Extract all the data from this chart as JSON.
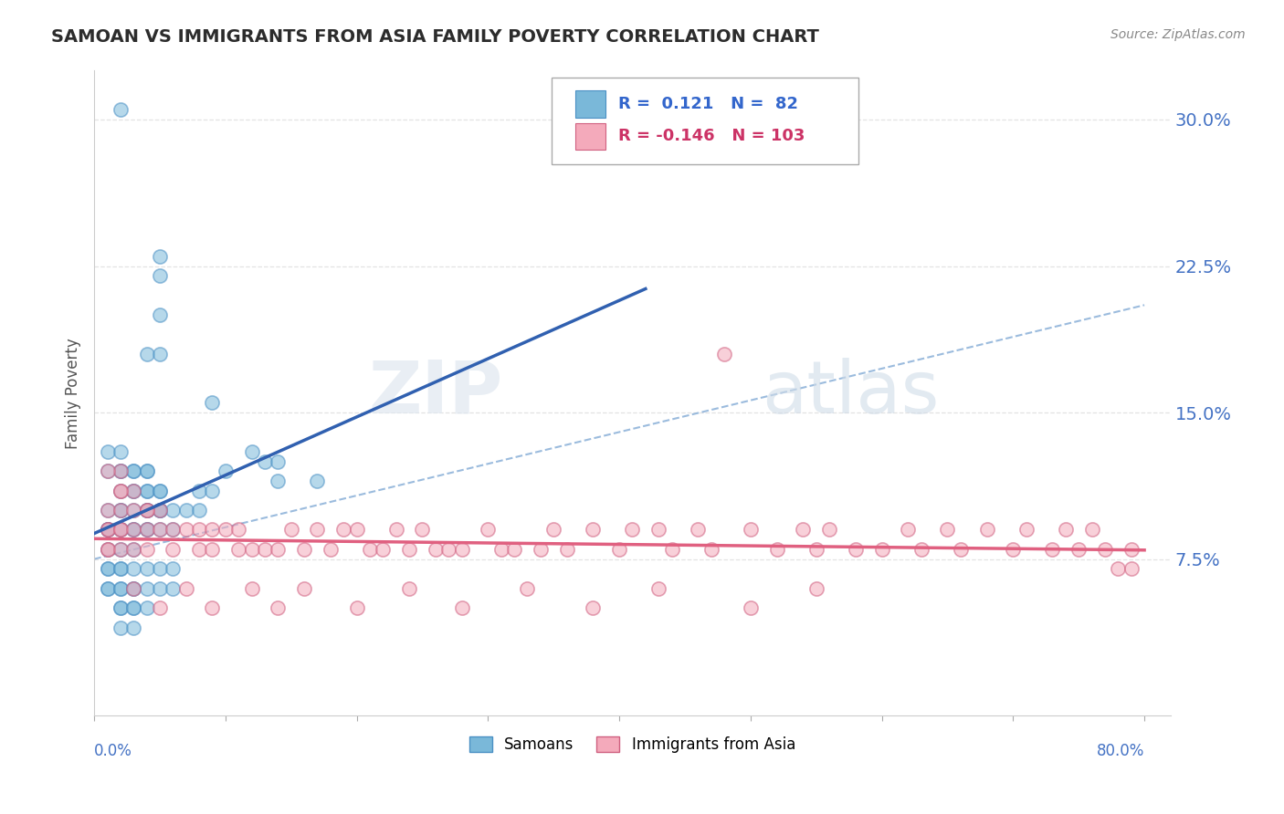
{
  "title": "SAMOAN VS IMMIGRANTS FROM ASIA FAMILY POVERTY CORRELATION CHART",
  "source": "Source: ZipAtlas.com",
  "ylabel": "Family Poverty",
  "ytick_labels": [
    "7.5%",
    "15.0%",
    "22.5%",
    "30.0%"
  ],
  "ytick_values": [
    0.075,
    0.15,
    0.225,
    0.3
  ],
  "xlim": [
    0.0,
    0.82
  ],
  "ylim": [
    -0.005,
    0.325
  ],
  "samoans_R": 0.121,
  "immigrants_R": -0.146,
  "blue_color": "#7ab8d9",
  "blue_edge": "#4a90c4",
  "blue_line": "#3060b0",
  "pink_color": "#f4aabb",
  "pink_edge": "#d06080",
  "pink_line": "#e06080",
  "dash_color": "#8ab0d8",
  "grid_color": "#dddddd",
  "title_color": "#2c2c2c",
  "source_color": "#888888",
  "axis_label_color": "#4472c4",
  "legend_blue_text": "R =  0.121   N =  82",
  "legend_pink_text": "R = -0.146   N = 103",
  "bottom_legend": [
    "Samoans",
    "Immigrants from Asia"
  ],
  "watermark_zip": "ZIP",
  "watermark_atlas": "atlas",
  "samoans_x": [
    0.02,
    0.04,
    0.04,
    0.04,
    0.05,
    0.05,
    0.05,
    0.05,
    0.01,
    0.01,
    0.01,
    0.01,
    0.01,
    0.02,
    0.02,
    0.02,
    0.02,
    0.02,
    0.03,
    0.03,
    0.03,
    0.03,
    0.04,
    0.04,
    0.05,
    0.05,
    0.01,
    0.01,
    0.01,
    0.01,
    0.02,
    0.02,
    0.02,
    0.02,
    0.03,
    0.03,
    0.03,
    0.04,
    0.04,
    0.05,
    0.05,
    0.06,
    0.06,
    0.02,
    0.02,
    0.02,
    0.03,
    0.03,
    0.03,
    0.04,
    0.09,
    0.13,
    0.14,
    0.14,
    0.17,
    0.01,
    0.01,
    0.02,
    0.02,
    0.02,
    0.02,
    0.03,
    0.03,
    0.03,
    0.03,
    0.04,
    0.04,
    0.04,
    0.04,
    0.04,
    0.05,
    0.05,
    0.05,
    0.05,
    0.06,
    0.06,
    0.07,
    0.08,
    0.08,
    0.09,
    0.1,
    0.12
  ],
  "samoans_y": [
    0.305,
    0.18,
    0.12,
    0.09,
    0.23,
    0.22,
    0.2,
    0.18,
    0.1,
    0.09,
    0.09,
    0.09,
    0.08,
    0.1,
    0.1,
    0.09,
    0.09,
    0.08,
    0.1,
    0.09,
    0.09,
    0.08,
    0.1,
    0.09,
    0.1,
    0.09,
    0.07,
    0.07,
    0.06,
    0.06,
    0.07,
    0.07,
    0.06,
    0.06,
    0.07,
    0.06,
    0.06,
    0.07,
    0.06,
    0.07,
    0.06,
    0.07,
    0.06,
    0.05,
    0.05,
    0.04,
    0.05,
    0.05,
    0.04,
    0.05,
    0.155,
    0.125,
    0.125,
    0.115,
    0.115,
    0.13,
    0.12,
    0.13,
    0.12,
    0.12,
    0.11,
    0.12,
    0.12,
    0.11,
    0.11,
    0.12,
    0.11,
    0.11,
    0.1,
    0.1,
    0.11,
    0.11,
    0.1,
    0.1,
    0.1,
    0.09,
    0.1,
    0.11,
    0.1,
    0.11,
    0.12,
    0.13
  ],
  "immigrants_x": [
    0.01,
    0.01,
    0.01,
    0.01,
    0.01,
    0.02,
    0.02,
    0.02,
    0.02,
    0.02,
    0.02,
    0.03,
    0.03,
    0.03,
    0.03,
    0.04,
    0.04,
    0.04,
    0.05,
    0.05,
    0.06,
    0.06,
    0.07,
    0.08,
    0.08,
    0.09,
    0.09,
    0.1,
    0.11,
    0.11,
    0.12,
    0.13,
    0.14,
    0.15,
    0.16,
    0.17,
    0.18,
    0.19,
    0.2,
    0.21,
    0.22,
    0.23,
    0.24,
    0.25,
    0.26,
    0.27,
    0.28,
    0.3,
    0.31,
    0.32,
    0.34,
    0.35,
    0.36,
    0.38,
    0.4,
    0.41,
    0.43,
    0.44,
    0.46,
    0.47,
    0.48,
    0.5,
    0.52,
    0.54,
    0.55,
    0.56,
    0.58,
    0.6,
    0.62,
    0.63,
    0.65,
    0.66,
    0.68,
    0.7,
    0.71,
    0.73,
    0.74,
    0.75,
    0.76,
    0.77,
    0.78,
    0.79,
    0.79,
    0.03,
    0.05,
    0.07,
    0.09,
    0.12,
    0.14,
    0.16,
    0.2,
    0.24,
    0.28,
    0.33,
    0.38,
    0.43,
    0.5,
    0.55,
    0.01,
    0.02,
    0.04
  ],
  "immigrants_y": [
    0.1,
    0.09,
    0.09,
    0.08,
    0.08,
    0.12,
    0.11,
    0.1,
    0.09,
    0.09,
    0.08,
    0.11,
    0.1,
    0.09,
    0.08,
    0.1,
    0.09,
    0.08,
    0.1,
    0.09,
    0.09,
    0.08,
    0.09,
    0.09,
    0.08,
    0.09,
    0.08,
    0.09,
    0.09,
    0.08,
    0.08,
    0.08,
    0.08,
    0.09,
    0.08,
    0.09,
    0.08,
    0.09,
    0.09,
    0.08,
    0.08,
    0.09,
    0.08,
    0.09,
    0.08,
    0.08,
    0.08,
    0.09,
    0.08,
    0.08,
    0.08,
    0.09,
    0.08,
    0.09,
    0.08,
    0.09,
    0.09,
    0.08,
    0.09,
    0.08,
    0.18,
    0.09,
    0.08,
    0.09,
    0.08,
    0.09,
    0.08,
    0.08,
    0.09,
    0.08,
    0.09,
    0.08,
    0.09,
    0.08,
    0.09,
    0.08,
    0.09,
    0.08,
    0.09,
    0.08,
    0.07,
    0.08,
    0.07,
    0.06,
    0.05,
    0.06,
    0.05,
    0.06,
    0.05,
    0.06,
    0.05,
    0.06,
    0.05,
    0.06,
    0.05,
    0.06,
    0.05,
    0.06,
    0.12,
    0.11,
    0.1
  ]
}
